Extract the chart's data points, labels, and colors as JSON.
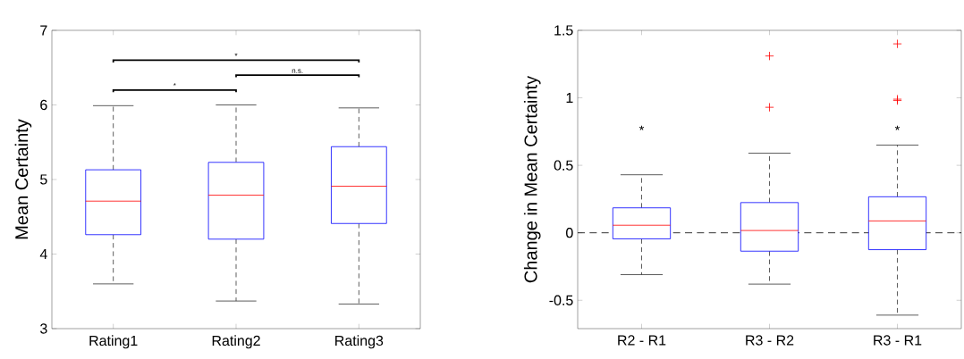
{
  "chart_data": [
    {
      "type": "box",
      "ylabel": "Mean Certainty",
      "categories": [
        "Rating1",
        "Rating2",
        "Rating3"
      ],
      "ylim": [
        3,
        7
      ],
      "yticks": [
        3,
        4,
        5,
        6,
        7
      ],
      "series": [
        {
          "color": "#0000ff",
          "boxes": [
            {
              "low": 3.6,
              "q1": 4.26,
              "median": 4.71,
              "q3": 5.13,
              "high": 5.99
            },
            {
              "low": 3.37,
              "q1": 4.2,
              "median": 4.79,
              "q3": 5.23,
              "high": 6.0
            },
            {
              "low": 3.33,
              "q1": 4.41,
              "median": 4.91,
              "q3": 5.44,
              "high": 5.96
            }
          ]
        }
      ],
      "annotations": [
        "*",
        "n.s.",
        "*"
      ]
    },
    {
      "type": "box",
      "ylabel": "Change in Mean Certainty",
      "categories": [
        "R2 - R1",
        "R3 - R2",
        "R3 - R1"
      ],
      "ylim": [
        -0.71,
        1.5
      ],
      "yticks": [
        -0.5,
        0,
        0.5,
        1,
        1.5
      ],
      "series": [
        {
          "color": "#0000ff",
          "boxes": [
            {
              "low": -0.31,
              "q1": -0.045,
              "median": 0.056,
              "q3": 0.185,
              "high": 0.43
            },
            {
              "low": -0.38,
              "q1": -0.136,
              "median": 0.017,
              "q3": 0.224,
              "high": 0.59,
              "outliers": [
                1.31,
                0.93
              ]
            },
            {
              "low": -0.61,
              "q1": -0.125,
              "median": 0.088,
              "q3": 0.267,
              "high": 0.65,
              "outliers": [
                1.4,
                0.99,
                0.98
              ]
            }
          ]
        }
      ],
      "ref_lines": [
        {
          "axis": "y",
          "value": 0,
          "color": "#000000",
          "line_style": "dashed"
        }
      ],
      "annotations": [
        "*",
        "*"
      ]
    }
  ]
}
